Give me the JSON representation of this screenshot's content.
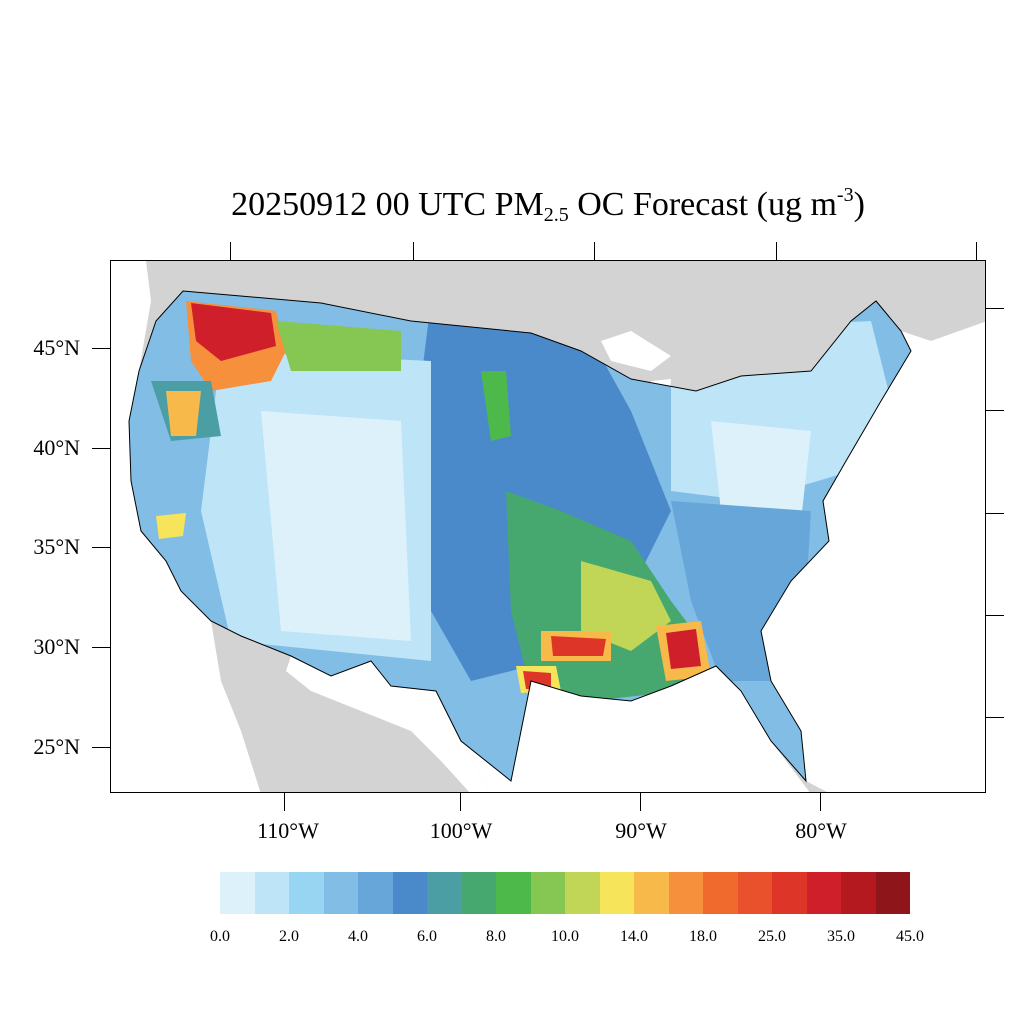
{
  "title": {
    "prefix": "20250912 00 UTC PM",
    "subscript": "2.5",
    "middle": " OC Forecast (ug m",
    "superscript": "-3",
    "suffix": ")"
  },
  "latitude_labels": [
    "45°N",
    "40°N",
    "35°N",
    "30°N",
    "25°N"
  ],
  "longitude_labels": [
    "110°W",
    "100°W",
    "90°W",
    "80°W"
  ],
  "colorbar": {
    "colors": [
      "#ddf1fb",
      "#bde4f7",
      "#97d5f3",
      "#82bde6",
      "#66a6d9",
      "#4a8acb",
      "#4a9ea4",
      "#46a86f",
      "#4cb94a",
      "#86c652",
      "#c1d657",
      "#f6e45b",
      "#f8b94b",
      "#f6903d",
      "#f16a2d",
      "#e9502c",
      "#de3529",
      "#cf1f2b",
      "#b3191f",
      "#8e151a"
    ],
    "labels": [
      "0.0",
      "2.0",
      "4.0",
      "6.0",
      "8.0",
      "10.0",
      "14.0",
      "18.0",
      "25.0",
      "35.0",
      "45.0"
    ]
  },
  "map": {
    "land_color": "#d3d3d3",
    "water_color": "#ffffff",
    "border_color": "#000000"
  }
}
